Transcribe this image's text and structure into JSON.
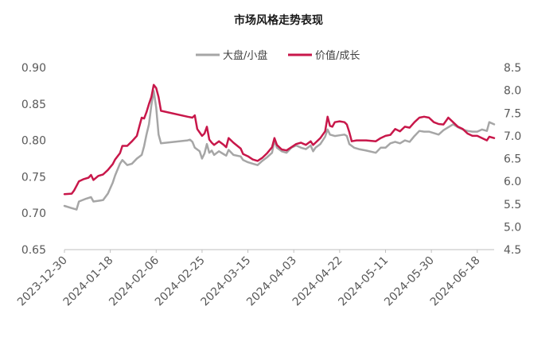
{
  "chart_data": {
    "type": "line",
    "title": "市场风格走势表现",
    "x_ticks": [
      "2023-12-30",
      "2024-01-18",
      "2024-02-06",
      "2024-02-25",
      "2024-03-15",
      "2024-04-03",
      "2024-04-22",
      "2024-05-11",
      "2024-05-30",
      "2024-06-18"
    ],
    "x_range": [
      "2023-12-30",
      "2024-06-25"
    ],
    "y_left": {
      "range": [
        0.65,
        0.9
      ],
      "ticks": [
        "0.65",
        "0.70",
        "0.75",
        "0.80",
        "0.85",
        "0.90"
      ]
    },
    "y_right": {
      "range": [
        4.5,
        8.5
      ],
      "ticks": [
        "4.5",
        "5.0",
        "5.5",
        "6.0",
        "6.5",
        "7.0",
        "7.5",
        "8.0",
        "8.5"
      ]
    },
    "grid": false,
    "legend_position": "top-center",
    "series": [
      {
        "name": "大盘/小盘",
        "axis": "left",
        "color": "#a6a6a6",
        "points": [
          [
            "2023-12-30",
            0.71
          ],
          [
            "2024-01-02",
            0.707
          ],
          [
            "2024-01-04",
            0.705
          ],
          [
            "2024-01-05",
            0.716
          ],
          [
            "2024-01-08",
            0.72
          ],
          [
            "2024-01-10",
            0.722
          ],
          [
            "2024-01-11",
            0.716
          ],
          [
            "2024-01-13",
            0.717
          ],
          [
            "2024-01-15",
            0.718
          ],
          [
            "2024-01-17",
            0.727
          ],
          [
            "2024-01-19",
            0.742
          ],
          [
            "2024-01-20",
            0.752
          ],
          [
            "2024-01-22",
            0.768
          ],
          [
            "2024-01-23",
            0.773
          ],
          [
            "2024-01-25",
            0.766
          ],
          [
            "2024-01-27",
            0.768
          ],
          [
            "2024-01-29",
            0.775
          ],
          [
            "2024-01-31",
            0.78
          ],
          [
            "2024-02-01",
            0.792
          ],
          [
            "2024-02-02",
            0.808
          ],
          [
            "2024-02-03",
            0.822
          ],
          [
            "2024-02-04",
            0.848
          ],
          [
            "2024-02-05",
            0.868
          ],
          [
            "2024-02-06",
            0.845
          ],
          [
            "2024-02-07",
            0.808
          ],
          [
            "2024-02-08",
            0.796
          ],
          [
            "2024-02-19",
            0.8
          ],
          [
            "2024-02-20",
            0.801
          ],
          [
            "2024-02-21",
            0.798
          ],
          [
            "2024-02-22",
            0.79
          ],
          [
            "2024-02-24",
            0.785
          ],
          [
            "2024-02-25",
            0.775
          ],
          [
            "2024-02-26",
            0.782
          ],
          [
            "2024-02-27",
            0.795
          ],
          [
            "2024-02-28",
            0.783
          ],
          [
            "2024-02-29",
            0.786
          ],
          [
            "2024-03-01",
            0.78
          ],
          [
            "2024-03-03",
            0.785
          ],
          [
            "2024-03-05",
            0.781
          ],
          [
            "2024-03-06",
            0.779
          ],
          [
            "2024-03-07",
            0.787
          ],
          [
            "2024-03-09",
            0.78
          ],
          [
            "2024-03-12",
            0.778
          ],
          [
            "2024-03-13",
            0.773
          ],
          [
            "2024-03-15",
            0.77
          ],
          [
            "2024-03-17",
            0.768
          ],
          [
            "2024-03-19",
            0.766
          ],
          [
            "2024-03-21",
            0.772
          ],
          [
            "2024-03-23",
            0.777
          ],
          [
            "2024-03-25",
            0.783
          ],
          [
            "2024-03-26",
            0.8
          ],
          [
            "2024-03-27",
            0.79
          ],
          [
            "2024-03-29",
            0.785
          ],
          [
            "2024-03-31",
            0.783
          ],
          [
            "2024-04-02",
            0.79
          ],
          [
            "2024-04-04",
            0.793
          ],
          [
            "2024-04-06",
            0.79
          ],
          [
            "2024-04-08",
            0.788
          ],
          [
            "2024-04-10",
            0.793
          ],
          [
            "2024-04-11",
            0.785
          ],
          [
            "2024-04-12",
            0.79
          ],
          [
            "2024-04-14",
            0.795
          ],
          [
            "2024-04-16",
            0.805
          ],
          [
            "2024-04-17",
            0.815
          ],
          [
            "2024-04-18",
            0.808
          ],
          [
            "2024-04-20",
            0.806
          ],
          [
            "2024-04-22",
            0.807
          ],
          [
            "2024-04-24",
            0.808
          ],
          [
            "2024-04-25",
            0.806
          ],
          [
            "2024-04-26",
            0.795
          ],
          [
            "2024-04-28",
            0.79
          ],
          [
            "2024-04-30",
            0.788
          ],
          [
            "2024-05-03",
            0.786
          ],
          [
            "2024-05-07",
            0.783
          ],
          [
            "2024-05-09",
            0.79
          ],
          [
            "2024-05-11",
            0.79
          ],
          [
            "2024-05-13",
            0.796
          ],
          [
            "2024-05-15",
            0.798
          ],
          [
            "2024-05-17",
            0.796
          ],
          [
            "2024-05-19",
            0.8
          ],
          [
            "2024-05-21",
            0.798
          ],
          [
            "2024-05-23",
            0.806
          ],
          [
            "2024-05-25",
            0.813
          ],
          [
            "2024-05-27",
            0.812
          ],
          [
            "2024-05-29",
            0.812
          ],
          [
            "2024-05-31",
            0.81
          ],
          [
            "2024-06-02",
            0.808
          ],
          [
            "2024-06-04",
            0.814
          ],
          [
            "2024-06-06",
            0.818
          ],
          [
            "2024-06-08",
            0.822
          ],
          [
            "2024-06-10",
            0.818
          ],
          [
            "2024-06-12",
            0.815
          ],
          [
            "2024-06-14",
            0.813
          ],
          [
            "2024-06-16",
            0.812
          ],
          [
            "2024-06-18",
            0.812
          ],
          [
            "2024-06-20",
            0.815
          ],
          [
            "2024-06-22",
            0.813
          ],
          [
            "2024-06-23",
            0.825
          ],
          [
            "2024-06-25",
            0.822
          ]
        ]
      },
      {
        "name": "价值/成长",
        "axis": "right",
        "color": "#c8174a",
        "points": [
          [
            "2023-12-30",
            5.72
          ],
          [
            "2024-01-02",
            5.73
          ],
          [
            "2024-01-03",
            5.8
          ],
          [
            "2024-01-04",
            5.9
          ],
          [
            "2024-01-05",
            6.0
          ],
          [
            "2024-01-07",
            6.05
          ],
          [
            "2024-01-09",
            6.08
          ],
          [
            "2024-01-10",
            6.14
          ],
          [
            "2024-01-11",
            6.03
          ],
          [
            "2024-01-13",
            6.12
          ],
          [
            "2024-01-15",
            6.15
          ],
          [
            "2024-01-17",
            6.25
          ],
          [
            "2024-01-19",
            6.38
          ],
          [
            "2024-01-20",
            6.48
          ],
          [
            "2024-01-22",
            6.62
          ],
          [
            "2024-01-23",
            6.78
          ],
          [
            "2024-01-25",
            6.78
          ],
          [
            "2024-01-27",
            6.88
          ],
          [
            "2024-01-29",
            7.0
          ],
          [
            "2024-01-30",
            7.2
          ],
          [
            "2024-01-31",
            7.4
          ],
          [
            "2024-02-01",
            7.38
          ],
          [
            "2024-02-02",
            7.52
          ],
          [
            "2024-02-03",
            7.7
          ],
          [
            "2024-02-04",
            7.85
          ],
          [
            "2024-02-05",
            8.12
          ],
          [
            "2024-02-06",
            8.05
          ],
          [
            "2024-02-07",
            7.85
          ],
          [
            "2024-02-08",
            7.55
          ],
          [
            "2024-02-19",
            7.42
          ],
          [
            "2024-02-21",
            7.4
          ],
          [
            "2024-02-22",
            7.45
          ],
          [
            "2024-02-23",
            7.15
          ],
          [
            "2024-02-25",
            7.0
          ],
          [
            "2024-02-26",
            7.05
          ],
          [
            "2024-02-27",
            7.2
          ],
          [
            "2024-02-28",
            6.92
          ],
          [
            "2024-02-29",
            6.85
          ],
          [
            "2024-03-01",
            6.8
          ],
          [
            "2024-03-03",
            6.88
          ],
          [
            "2024-03-05",
            6.8
          ],
          [
            "2024-03-06",
            6.75
          ],
          [
            "2024-03-07",
            6.95
          ],
          [
            "2024-03-09",
            6.85
          ],
          [
            "2024-03-12",
            6.72
          ],
          [
            "2024-03-13",
            6.6
          ],
          [
            "2024-03-15",
            6.55
          ],
          [
            "2024-03-17",
            6.48
          ],
          [
            "2024-03-19",
            6.45
          ],
          [
            "2024-03-21",
            6.52
          ],
          [
            "2024-03-23",
            6.62
          ],
          [
            "2024-03-25",
            6.75
          ],
          [
            "2024-03-26",
            6.95
          ],
          [
            "2024-03-27",
            6.8
          ],
          [
            "2024-03-29",
            6.7
          ],
          [
            "2024-03-31",
            6.68
          ],
          [
            "2024-04-02",
            6.75
          ],
          [
            "2024-04-04",
            6.82
          ],
          [
            "2024-04-06",
            6.85
          ],
          [
            "2024-04-08",
            6.8
          ],
          [
            "2024-04-10",
            6.88
          ],
          [
            "2024-04-11",
            6.8
          ],
          [
            "2024-04-12",
            6.85
          ],
          [
            "2024-04-14",
            6.95
          ],
          [
            "2024-04-16",
            7.1
          ],
          [
            "2024-04-17",
            7.42
          ],
          [
            "2024-04-18",
            7.22
          ],
          [
            "2024-04-19",
            7.2
          ],
          [
            "2024-04-20",
            7.3
          ],
          [
            "2024-04-22",
            7.32
          ],
          [
            "2024-04-24",
            7.3
          ],
          [
            "2024-04-25",
            7.25
          ],
          [
            "2024-04-26",
            7.08
          ],
          [
            "2024-04-27",
            6.88
          ],
          [
            "2024-04-29",
            6.9
          ],
          [
            "2024-05-03",
            6.9
          ],
          [
            "2024-05-07",
            6.88
          ],
          [
            "2024-05-09",
            6.95
          ],
          [
            "2024-05-11",
            7.0
          ],
          [
            "2024-05-13",
            7.02
          ],
          [
            "2024-05-15",
            7.15
          ],
          [
            "2024-05-17",
            7.1
          ],
          [
            "2024-05-19",
            7.2
          ],
          [
            "2024-05-21",
            7.18
          ],
          [
            "2024-05-23",
            7.3
          ],
          [
            "2024-05-25",
            7.4
          ],
          [
            "2024-05-27",
            7.42
          ],
          [
            "2024-05-29",
            7.4
          ],
          [
            "2024-05-31",
            7.3
          ],
          [
            "2024-06-02",
            7.26
          ],
          [
            "2024-06-04",
            7.25
          ],
          [
            "2024-06-06",
            7.4
          ],
          [
            "2024-06-08",
            7.3
          ],
          [
            "2024-06-10",
            7.2
          ],
          [
            "2024-06-12",
            7.15
          ],
          [
            "2024-06-14",
            7.05
          ],
          [
            "2024-06-16",
            7.0
          ],
          [
            "2024-06-18",
            7.0
          ],
          [
            "2024-06-20",
            6.95
          ],
          [
            "2024-06-22",
            6.9
          ],
          [
            "2024-06-23",
            6.98
          ],
          [
            "2024-06-25",
            6.95
          ]
        ]
      }
    ]
  }
}
